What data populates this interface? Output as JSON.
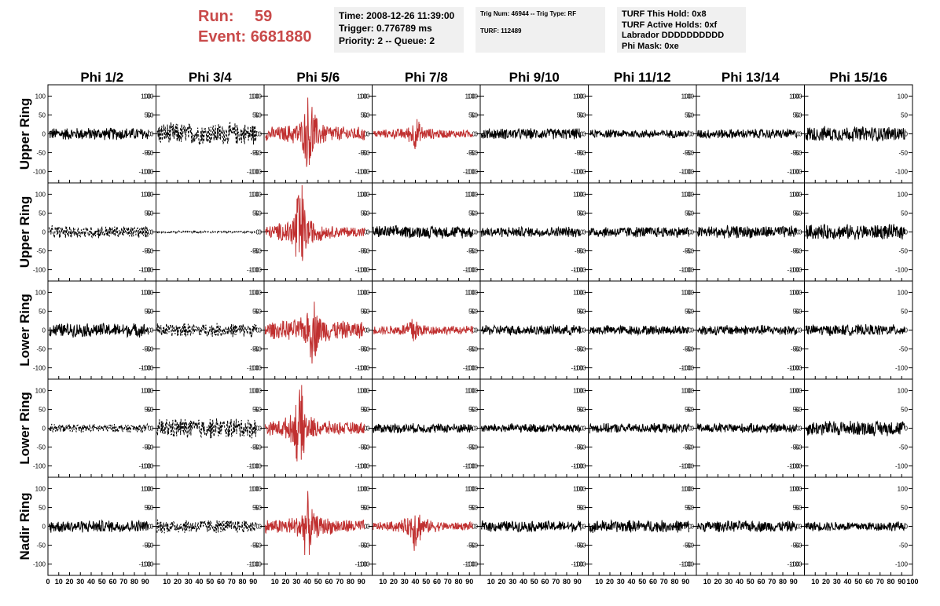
{
  "header": {
    "run_label": "Run:",
    "run_value": "59",
    "event_label": "Event:",
    "event_value": "6681880",
    "time": "Time: 2008-12-26 11:39:00",
    "trigger": "Trigger: 0.776789 ms",
    "priority": "Priority: 2 -- Queue: 2",
    "trig_num": "Trig Num: 46944 -- Trig Type: RF",
    "turf": "TURF: 112489",
    "turf_this_hold": "TURF This Hold: 0x8",
    "turf_active_holds": "TURF Active Holds: 0xf",
    "labrador": "Labrador DDDDDDDDDD",
    "phi_mask": "Phi Mask: 0xe",
    "accent_color": "#c94a4a"
  },
  "chart_data": {
    "type": "line",
    "columns": [
      "Phi 1/2",
      "Phi 3/4",
      "Phi 5/6",
      "Phi 7/8",
      "Phi 9/10",
      "Phi 11/12",
      "Phi 13/14",
      "Phi 15/16"
    ],
    "row_labels": [
      "Upper Ring",
      "Upper Ring",
      "Lower Ring",
      "Lower Ring",
      "Nadir Ring"
    ],
    "ylim": [
      -130,
      130
    ],
    "xlim": [
      0,
      100
    ],
    "yticks": [
      -100,
      -50,
      0,
      50,
      100
    ],
    "xticks": [
      0,
      10,
      20,
      30,
      40,
      50,
      60,
      70,
      80,
      90,
      100
    ],
    "xtick_labels": [
      "0",
      "10",
      "20",
      "30",
      "40",
      "50",
      "60",
      "70",
      "80",
      "90",
      "100"
    ],
    "colors": {
      "normal": "#000000",
      "triggered": "#c03030"
    },
    "panels": [
      [
        {
          "style": "solid",
          "color": "normal",
          "amp": 18,
          "burst": 0,
          "center": 0
        },
        {
          "style": "dashed",
          "color": "normal",
          "amp": 32,
          "burst": 0,
          "center": 0
        },
        {
          "style": "solid",
          "color": "triggered",
          "amp": 20,
          "burst": 85,
          "center": 42
        },
        {
          "style": "solid",
          "color": "triggered",
          "amp": 12,
          "burst": 30,
          "center": 40
        },
        {
          "style": "solid",
          "color": "normal",
          "amp": 16,
          "burst": 0,
          "center": 0
        },
        {
          "style": "solid",
          "color": "normal",
          "amp": 12,
          "burst": 0,
          "center": 0
        },
        {
          "style": "solid",
          "color": "normal",
          "amp": 14,
          "burst": 0,
          "center": 0
        },
        {
          "style": "solid",
          "color": "normal",
          "amp": 22,
          "burst": 0,
          "center": 0
        }
      ],
      [
        {
          "style": "dashed",
          "color": "normal",
          "amp": 18,
          "burst": 0,
          "center": 0
        },
        {
          "style": "dashed",
          "color": "normal",
          "amp": 3,
          "burst": 0,
          "center": 0
        },
        {
          "style": "solid",
          "color": "triggered",
          "amp": 16,
          "burst": 120,
          "center": 33
        },
        {
          "style": "solid",
          "color": "normal",
          "amp": 18,
          "burst": 0,
          "center": 0
        },
        {
          "style": "solid",
          "color": "normal",
          "amp": 15,
          "burst": 0,
          "center": 0
        },
        {
          "style": "solid",
          "color": "normal",
          "amp": 16,
          "burst": 0,
          "center": 0
        },
        {
          "style": "solid",
          "color": "normal",
          "amp": 18,
          "burst": 0,
          "center": 0
        },
        {
          "style": "solid",
          "color": "normal",
          "amp": 22,
          "burst": 0,
          "center": 0
        }
      ],
      [
        {
          "style": "solid",
          "color": "normal",
          "amp": 20,
          "burst": 0,
          "center": 0
        },
        {
          "style": "dashed",
          "color": "normal",
          "amp": 20,
          "burst": 0,
          "center": 0
        },
        {
          "style": "solid",
          "color": "triggered",
          "amp": 25,
          "burst": 60,
          "center": 45
        },
        {
          "style": "solid",
          "color": "triggered",
          "amp": 12,
          "burst": 30,
          "center": 38
        },
        {
          "style": "solid",
          "color": "normal",
          "amp": 15,
          "burst": 0,
          "center": 0
        },
        {
          "style": "solid",
          "color": "normal",
          "amp": 14,
          "burst": 0,
          "center": 0
        },
        {
          "style": "solid",
          "color": "normal",
          "amp": 15,
          "burst": 0,
          "center": 0
        },
        {
          "style": "solid",
          "color": "normal",
          "amp": 16,
          "burst": 0,
          "center": 0
        }
      ],
      [
        {
          "style": "dashed",
          "color": "normal",
          "amp": 12,
          "burst": 0,
          "center": 0
        },
        {
          "style": "dashed",
          "color": "normal",
          "amp": 30,
          "burst": 0,
          "center": 0
        },
        {
          "style": "solid",
          "color": "triggered",
          "amp": 18,
          "burst": 90,
          "center": 33
        },
        {
          "style": "solid",
          "color": "normal",
          "amp": 14,
          "burst": 0,
          "center": 0
        },
        {
          "style": "solid",
          "color": "normal",
          "amp": 13,
          "burst": 0,
          "center": 0
        },
        {
          "style": "solid",
          "color": "normal",
          "amp": 14,
          "burst": 0,
          "center": 0
        },
        {
          "style": "solid",
          "color": "normal",
          "amp": 14,
          "burst": 0,
          "center": 0
        },
        {
          "style": "solid",
          "color": "normal",
          "amp": 22,
          "burst": 0,
          "center": 0
        }
      ],
      [
        {
          "style": "solid",
          "color": "normal",
          "amp": 18,
          "burst": 0,
          "center": 0
        },
        {
          "style": "dashed",
          "color": "normal",
          "amp": 20,
          "burst": 0,
          "center": 0
        },
        {
          "style": "solid",
          "color": "triggered",
          "amp": 20,
          "burst": 60,
          "center": 40
        },
        {
          "style": "solid",
          "color": "triggered",
          "amp": 12,
          "burst": 50,
          "center": 40
        },
        {
          "style": "solid",
          "color": "normal",
          "amp": 16,
          "burst": 0,
          "center": 0
        },
        {
          "style": "solid",
          "color": "normal",
          "amp": 18,
          "burst": 0,
          "center": 0
        },
        {
          "style": "solid",
          "color": "normal",
          "amp": 16,
          "burst": 0,
          "center": 0
        },
        {
          "style": "solid",
          "color": "normal",
          "amp": 14,
          "burst": 0,
          "center": 0
        }
      ]
    ]
  }
}
